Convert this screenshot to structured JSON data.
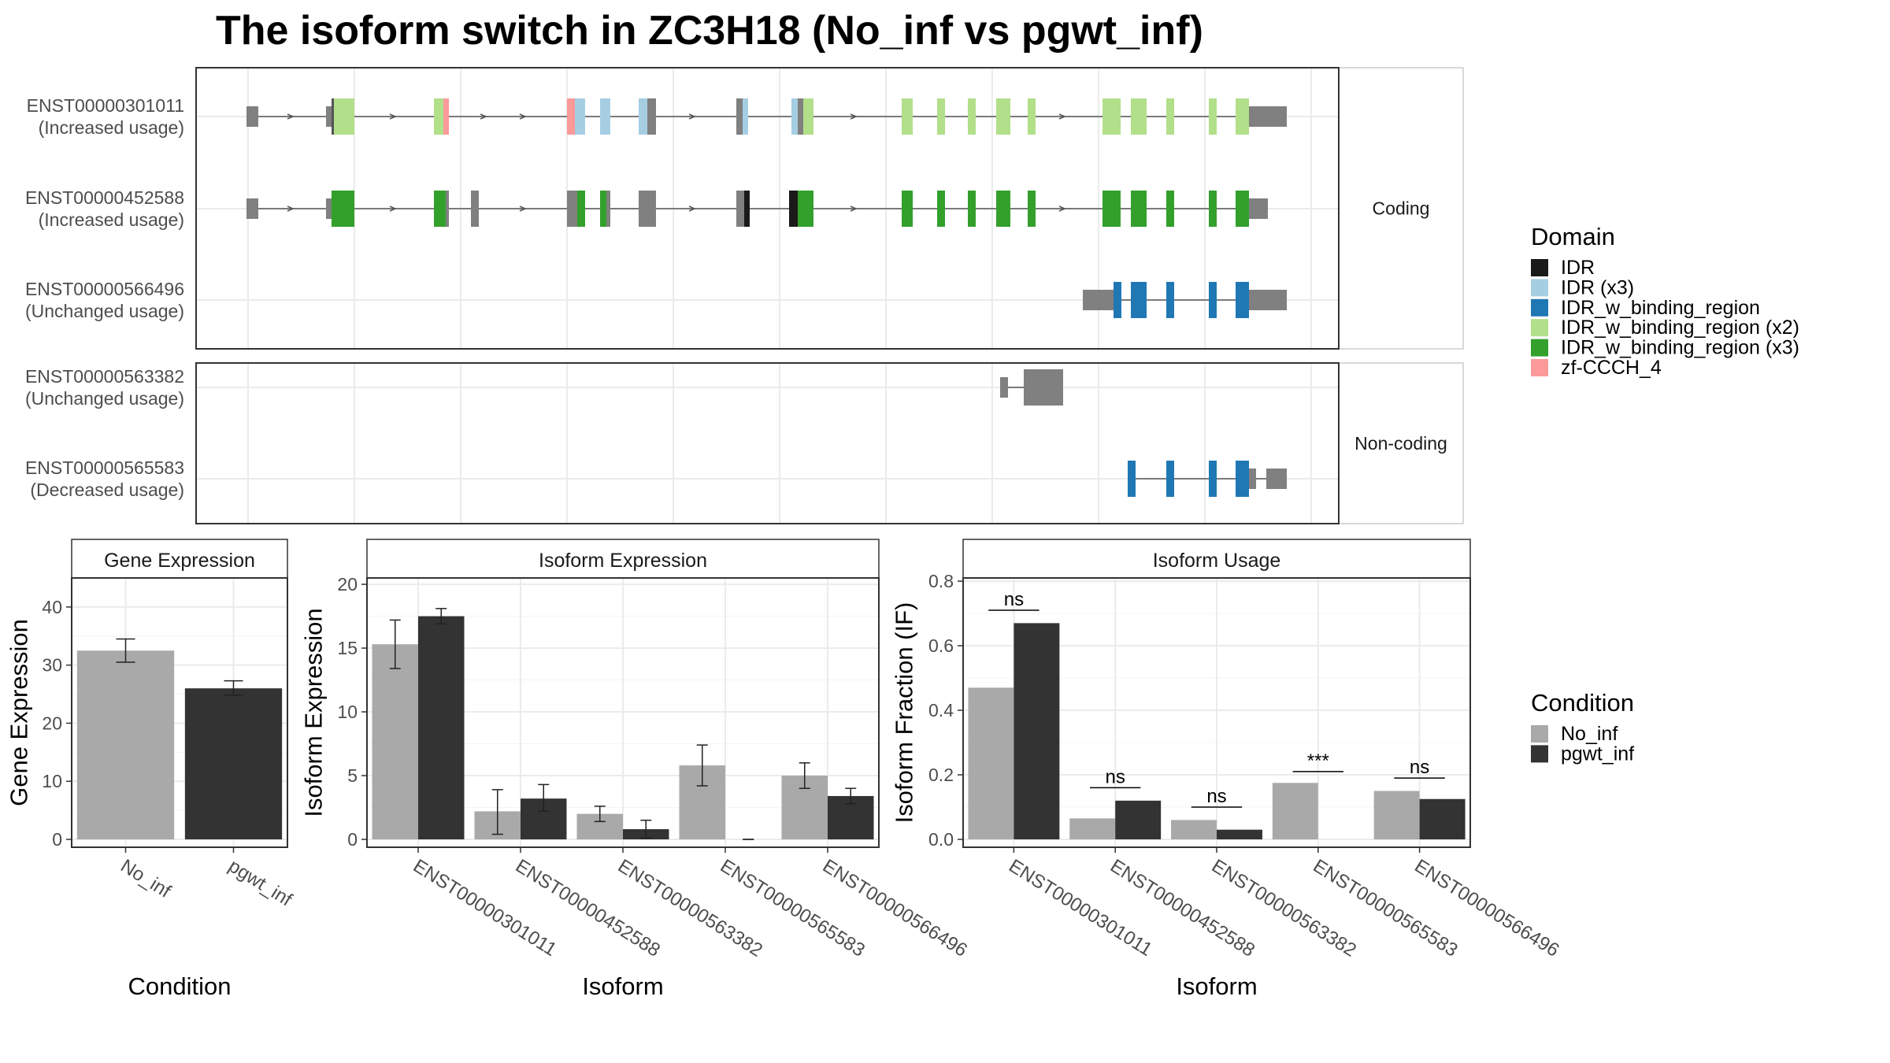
{
  "title": "The isoform switch in ZC3H18 (No_inf vs pgwt_inf)",
  "colors": {
    "intron": "#555555",
    "utr": "#808080",
    "no_inf": "#A9A9A9",
    "pgwt_inf": "#333333",
    "grid": "#ebebeb",
    "frame": "#333333",
    "strip_border": "#aaaaaa"
  },
  "structure": {
    "facets": [
      {
        "label": "Coding",
        "isoforms": [
          {
            "id": "ENST00000301011",
            "usage": "(Increased usage)"
          },
          {
            "id": "ENST00000452588",
            "usage": "(Increased usage)"
          },
          {
            "id": "ENST00000566496",
            "usage": "(Unchanged usage)"
          }
        ]
      },
      {
        "label": "Non-coding",
        "isoforms": [
          {
            "id": "ENST00000563382",
            "usage": "(Unchanged usage)"
          },
          {
            "id": "ENST00000565583",
            "usage": "(Decreased usage)"
          }
        ]
      }
    ]
  },
  "legends": {
    "domain": {
      "title": "Domain",
      "items": [
        {
          "label": "IDR",
          "color": "#1a1a1a"
        },
        {
          "label": "IDR (x3)",
          "color": "#A6CEE3"
        },
        {
          "label": "IDR_w_binding_region",
          "color": "#1F78B4"
        },
        {
          "label": "IDR_w_binding_region (x2)",
          "color": "#B2DF8A"
        },
        {
          "label": "IDR_w_binding_region (x3)",
          "color": "#33A02C"
        },
        {
          "label": "zf-CCCH_4",
          "color": "#FB9A99"
        }
      ]
    },
    "condition": {
      "title": "Condition",
      "items": [
        {
          "label": "No_inf",
          "color": "#A9A9A9"
        },
        {
          "label": "pgwt_inf",
          "color": "#333333"
        }
      ]
    }
  },
  "chart_data": [
    {
      "type": "bar",
      "title": "Gene Expression",
      "xlabel": "Condition",
      "ylabel": "Gene Expression",
      "ylim": [
        0,
        45
      ],
      "yticks": [
        0,
        10,
        20,
        30,
        40
      ],
      "categories": [
        "No_inf",
        "pgwt_inf"
      ],
      "values": [
        32.5,
        26.0
      ],
      "error": [
        [
          30.5,
          34.5
        ],
        [
          24.8,
          27.3
        ]
      ],
      "colors": [
        "#A9A9A9",
        "#333333"
      ]
    },
    {
      "type": "bar",
      "title": "Isoform Expression",
      "xlabel": "Isoform",
      "ylabel": "Isoform Expression",
      "ylim": [
        0,
        20.5
      ],
      "yticks": [
        0,
        5,
        10,
        15,
        20
      ],
      "categories": [
        "ENST00000301011",
        "ENST00000452588",
        "ENST00000563382",
        "ENST00000565583",
        "ENST00000566496"
      ],
      "series": [
        {
          "name": "No_inf",
          "values": [
            15.3,
            2.2,
            2.0,
            5.8,
            5.0
          ],
          "error": [
            [
              13.4,
              17.2
            ],
            [
              0.4,
              3.9
            ],
            [
              1.4,
              2.6
            ],
            [
              4.2,
              7.4
            ],
            [
              4.0,
              6.0
            ]
          ]
        },
        {
          "name": "pgwt_inf",
          "values": [
            17.5,
            3.2,
            0.8,
            0.0,
            3.4
          ],
          "error": [
            [
              16.9,
              18.1
            ],
            [
              2.2,
              4.3
            ],
            [
              0.1,
              1.5
            ],
            [
              0.0,
              0.0
            ],
            [
              2.8,
              4.0
            ]
          ]
        }
      ]
    },
    {
      "type": "bar",
      "title": "Isoform Usage",
      "xlabel": "Isoform",
      "ylabel": "Isoform Fraction (IF)",
      "ylim": [
        0,
        0.81
      ],
      "yticks": [
        "0.0",
        "0.2",
        "0.4",
        "0.6",
        "0.8"
      ],
      "categories": [
        "ENST00000301011",
        "ENST00000452588",
        "ENST00000563382",
        "ENST00000565583",
        "ENST00000566496"
      ],
      "series": [
        {
          "name": "No_inf",
          "values": [
            0.47,
            0.065,
            0.06,
            0.175,
            0.15
          ]
        },
        {
          "name": "pgwt_inf",
          "values": [
            0.67,
            0.12,
            0.03,
            0.0,
            0.125
          ]
        }
      ],
      "significance": [
        {
          "label": "ns",
          "y": 0.71
        },
        {
          "label": "ns",
          "y": 0.16
        },
        {
          "label": "ns",
          "y": 0.1
        },
        {
          "label": "***",
          "y": 0.21
        },
        {
          "label": "ns",
          "y": 0.19
        }
      ]
    }
  ]
}
